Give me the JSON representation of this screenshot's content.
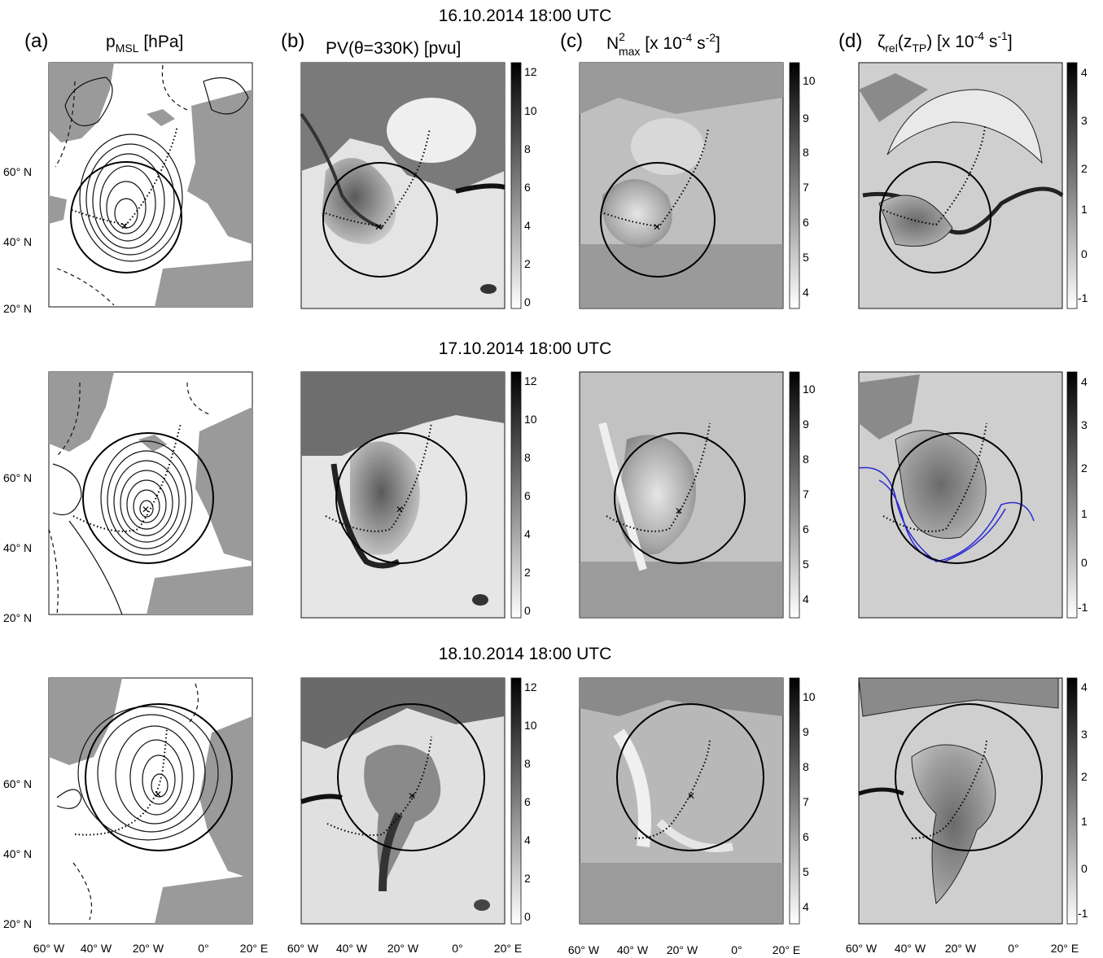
{
  "row_titles": [
    "16.10.2014 18:00 UTC",
    "17.10.2014 18:00 UTC",
    "18.10.2014 18:00 UTC"
  ],
  "panels": [
    {
      "letter": "(a)",
      "title": "p",
      "title_sub": "MSL",
      "title_tail": " [hPa]"
    },
    {
      "letter": "(b)",
      "title": "PV(θ=330K) [pvu]"
    },
    {
      "letter": "(c)",
      "title": "N",
      "title_sup": "2",
      "title_sub": "max",
      "title_tail": " [x 10",
      "title_sup2": "-4",
      "title_tail2": " s",
      "title_sup3": "-2",
      "title_end": "]"
    },
    {
      "letter": "(d)",
      "title": "ζ",
      "title_sub": "rel",
      "title_tail": "(z",
      "title_sub2": "TP",
      "title_tail2": ") [x 10",
      "title_sup2": "-4",
      "title_tail3": " s",
      "title_sup3": "-1",
      "title_end": "]"
    }
  ],
  "lat_labels": [
    "60° N",
    "40° N",
    "20° N"
  ],
  "lon_labels": [
    "60° W",
    "40° W",
    "20° W",
    "0°",
    "20° E"
  ],
  "colorbars": {
    "b": {
      "ticks": [
        "12",
        "10",
        "8",
        "6",
        "4",
        "2",
        "0"
      ]
    },
    "c": {
      "ticks": [
        "10",
        "9",
        "8",
        "7",
        "6",
        "5",
        "4"
      ]
    },
    "d": {
      "ticks": [
        "4",
        "3",
        "2",
        "1",
        "0",
        "-1"
      ]
    }
  },
  "colors": {
    "contour": "#111111",
    "land": "#9a9a9a",
    "blue_contour": "#2a2ad0"
  }
}
